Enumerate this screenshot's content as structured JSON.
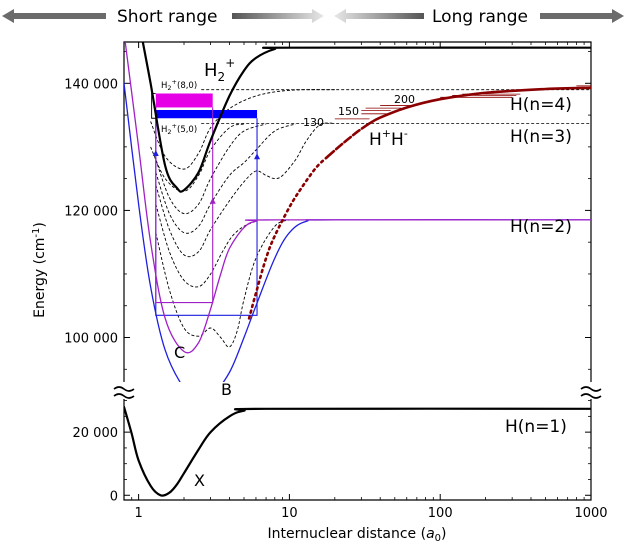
{
  "banner": {
    "short_range": "Short range",
    "long_range": "Long range"
  },
  "axes": {
    "xlabel_main": "Internuclear distance (",
    "xlabel_unit": "a",
    "xlabel_sub": "0",
    "xlabel_end": ")",
    "ylabel_main": "Energy (cm",
    "ylabel_sup": "-1",
    "ylabel_end": ")"
  },
  "labels": {
    "h2plus_base": "H",
    "h2plus_sub": "2",
    "h2plus_sup": "+",
    "n4": "H(n=4)",
    "n3": "H(n=3)",
    "n2": "H(n=2)",
    "n1": "H(n=1)",
    "hh_a": "H",
    "hh_sup1": "+",
    "hh_b": "H",
    "hh_sup2": "-",
    "C": "C",
    "B": "B",
    "X": "X",
    "v80_base": "H",
    "v80_sub": "2",
    "v80_sup": "+",
    "v80_tail": "(8,0)",
    "v50_base": "H",
    "v50_sub": "2",
    "v50_sup": "+",
    "v50_tail": "(5,0)",
    "r130": "130",
    "r150": "150",
    "r200": "200"
  },
  "colors": {
    "black": "#000000",
    "blue": "#1f1fe0",
    "purple": "#a020c8",
    "magenta": "#e600e6",
    "darkred": "#8b0000",
    "banner_gray": "#6b6b6b"
  },
  "chart_data": {
    "type": "line",
    "x_scale": "log",
    "xlim": [
      0.8,
      1000
    ],
    "upper_ylim": [
      93000,
      146500
    ],
    "lower_ylim": [
      -1500,
      30500
    ],
    "x_ticks": [
      {
        "value": 1,
        "label": "1"
      },
      {
        "value": 10,
        "label": "10"
      },
      {
        "value": 100,
        "label": "100"
      },
      {
        "value": 1000,
        "label": "1000"
      }
    ],
    "y_ticks_upper": [
      {
        "value": 100000,
        "label": "100 000"
      },
      {
        "value": 120000,
        "label": "120 000"
      },
      {
        "value": 140000,
        "label": "140 000"
      }
    ],
    "y_ticks_lower": [
      {
        "value": 0,
        "label": "0"
      },
      {
        "value": 20000,
        "label": "20 000"
      }
    ],
    "asymptotes": [
      {
        "name": "H(n=1)",
        "energy": 27400
      },
      {
        "name": "H(n=2)",
        "energy": 118500
      },
      {
        "name": "H(n=3)",
        "energy": 133700
      },
      {
        "name": "H(n=4)",
        "energy": 139000
      },
      {
        "name": "H2+",
        "energy": 145600
      }
    ],
    "series": [
      {
        "key": "X",
        "color": "#000000",
        "panel": "lower",
        "points": [
          [
            0.8,
            28000
          ],
          [
            0.9,
            19500
          ],
          [
            1.0,
            11000
          ],
          [
            1.2,
            3000
          ],
          [
            1.4,
            0
          ],
          [
            1.6,
            800
          ],
          [
            1.8,
            3500
          ],
          [
            2.0,
            7000
          ],
          [
            2.5,
            14500
          ],
          [
            3.0,
            20000
          ],
          [
            4.0,
            25000
          ],
          [
            5.0,
            26800
          ],
          [
            7.0,
            27400
          ],
          [
            1000,
            27400
          ]
        ]
      },
      {
        "key": "B",
        "color": "#1f1fe0",
        "panel": "upper",
        "points": [
          [
            0.8,
            140000
          ],
          [
            1.0,
            121000
          ],
          [
            1.2,
            108000
          ],
          [
            1.5,
            98000
          ],
          [
            2.0,
            92000
          ],
          [
            2.5,
            90000
          ],
          [
            3.0,
            90500
          ],
          [
            4.0,
            94500
          ],
          [
            5.0,
            100000
          ],
          [
            6.0,
            105000
          ],
          [
            8.0,
            112500
          ],
          [
            10.0,
            116500
          ],
          [
            13.0,
            118300
          ],
          [
            20.0,
            118500
          ],
          [
            1000,
            118500
          ]
        ]
      },
      {
        "key": "C",
        "color": "#a020c8",
        "panel": "upper",
        "points": [
          [
            0.8,
            148000
          ],
          [
            1.0,
            130000
          ],
          [
            1.2,
            115000
          ],
          [
            1.5,
            103000
          ],
          [
            2.0,
            97800
          ],
          [
            2.5,
            99200
          ],
          [
            3.0,
            104500
          ],
          [
            3.5,
            110000
          ],
          [
            4.0,
            114000
          ],
          [
            5.0,
            117300
          ],
          [
            6.0,
            118300
          ],
          [
            8.0,
            118500
          ],
          [
            1000,
            118500
          ]
        ]
      },
      {
        "key": "H2+",
        "color": "#000000",
        "panel": "upper",
        "points": [
          [
            1.0,
            150000
          ],
          [
            1.2,
            140000
          ],
          [
            1.5,
            127000
          ],
          [
            1.8,
            123500
          ],
          [
            2.0,
            123200
          ],
          [
            2.5,
            126000
          ],
          [
            3.0,
            131000
          ],
          [
            4.0,
            138000
          ],
          [
            5.0,
            142000
          ],
          [
            6.0,
            144000
          ],
          [
            8.0,
            145400
          ],
          [
            10.0,
            145600
          ],
          [
            1000,
            145600
          ]
        ]
      },
      {
        "key": "H+H- dotted",
        "color": "#8b0000",
        "panel": "upper",
        "points": [
          [
            5.4,
            103000
          ],
          [
            6.0,
            107000
          ],
          [
            7.0,
            112500
          ],
          [
            8.0,
            116000
          ],
          [
            10.0,
            120500
          ],
          [
            12.0,
            123500
          ],
          [
            15.0,
            126700
          ],
          [
            18.0,
            128500
          ]
        ]
      },
      {
        "key": "H+H- dashed",
        "color": "#8b0000",
        "panel": "upper",
        "points": [
          [
            18.0,
            128500
          ],
          [
            22.0,
            130300
          ],
          [
            28.0,
            132300
          ],
          [
            34.0,
            133700
          ]
        ]
      },
      {
        "key": "H+H- solid",
        "color": "#8b0000",
        "panel": "upper",
        "points": [
          [
            34.0,
            133700
          ],
          [
            40.0,
            134600
          ],
          [
            60.0,
            136200
          ],
          [
            100.0,
            137500
          ],
          [
            200.0,
            138500
          ],
          [
            500.0,
            139100
          ],
          [
            1000,
            139300
          ]
        ]
      }
    ],
    "dashed_curves": [
      [
        [
          1.3,
          116500
        ],
        [
          1.6,
          107500
        ],
        [
          2.0,
          101500
        ],
        [
          2.5,
          100200
        ],
        [
          3.0,
          101500
        ],
        [
          3.5,
          100000
        ],
        [
          4.0,
          98500
        ],
        [
          4.5,
          101000
        ],
        [
          5.0,
          106000
        ],
        [
          6.0,
          112500
        ],
        [
          8.0,
          117500
        ],
        [
          10.0,
          118500
        ]
      ],
      [
        [
          1.3,
          121000
        ],
        [
          1.6,
          113500
        ],
        [
          2.0,
          109000
        ],
        [
          2.5,
          108000
        ],
        [
          3.0,
          110000
        ],
        [
          3.6,
          113500
        ],
        [
          4.2,
          116000
        ],
        [
          5.0,
          117500
        ],
        [
          6.0,
          118300
        ]
      ],
      [
        [
          1.3,
          124000
        ],
        [
          1.6,
          117000
        ],
        [
          2.0,
          113000
        ],
        [
          2.5,
          113500
        ],
        [
          3.0,
          117000
        ],
        [
          4.0,
          121500
        ],
        [
          5.0,
          124500
        ],
        [
          6.0,
          126200
        ],
        [
          7.0,
          125500
        ],
        [
          8.0,
          125000
        ],
        [
          9.0,
          125500
        ],
        [
          11.0,
          128000
        ],
        [
          13.0,
          131000
        ],
        [
          16.0,
          133500
        ],
        [
          20.0,
          133700
        ]
      ],
      [
        [
          1.3,
          126000
        ],
        [
          1.6,
          119500
        ],
        [
          2.0,
          116500
        ],
        [
          2.5,
          117500
        ],
        [
          3.0,
          121000
        ],
        [
          4.0,
          125500
        ],
        [
          5.0,
          127500
        ],
        [
          6.0,
          129500
        ],
        [
          8.0,
          132500
        ],
        [
          11.0,
          133600
        ]
      ],
      [
        [
          1.3,
          128000
        ],
        [
          1.6,
          122000
        ],
        [
          2.0,
          119500
        ],
        [
          2.5,
          121000
        ],
        [
          3.0,
          125000
        ],
        [
          4.0,
          130000
        ],
        [
          5.0,
          132500
        ],
        [
          7.0,
          133600
        ]
      ],
      [
        [
          1.2,
          130000
        ],
        [
          1.5,
          125000
        ],
        [
          2.0,
          123000
        ],
        [
          2.5,
          125500
        ],
        [
          3.0,
          129500
        ],
        [
          4.0,
          133000
        ],
        [
          5.0,
          133600
        ]
      ],
      [
        [
          1.2,
          134000
        ],
        [
          1.5,
          128500
        ],
        [
          2.0,
          126500
        ],
        [
          2.5,
          129000
        ],
        [
          3.0,
          133000
        ],
        [
          4.0,
          136000
        ],
        [
          6.0,
          138000
        ],
        [
          10.0,
          138900
        ],
        [
          20.0,
          139000
        ]
      ]
    ],
    "dashed_levels": [
      133700,
      139000
    ],
    "bands": [
      {
        "name": "H2+(8,0)",
        "color": "#e600e6",
        "x": [
          1.3,
          3.1
        ],
        "y": [
          136200,
          138400
        ]
      },
      {
        "name": "H2+(5,0)",
        "color": "#0000ff",
        "x": [
          1.3,
          6.1
        ],
        "y": [
          134500,
          135800
        ]
      }
    ],
    "bracket": {
      "x": 1.22,
      "y": [
        134500,
        138400
      ]
    },
    "transitions": [
      {
        "color": "#1f1fe0",
        "xs": [
          1.3,
          6.1
        ],
        "y_low": 103500,
        "y_high": 134500
      },
      {
        "color": "#a020c8",
        "xs": [
          1.3,
          3.1
        ],
        "y_low": 105500,
        "y_high": 136200
      }
    ],
    "transition_arrows": [
      {
        "color": "#1f1fe0",
        "x": 1.3,
        "y_from": 127000,
        "y_to": 129500
      },
      {
        "color": "#1f1fe0",
        "x": 6.1,
        "y_from": 126500,
        "y_to": 129000
      },
      {
        "color": "#a020c8",
        "x": 3.1,
        "y_from": 119500,
        "y_to": 122000
      }
    ],
    "rydberg_lines": [
      {
        "y": 134400,
        "x": [
          20,
          34
        ]
      },
      {
        "y": 135200,
        "x": [
          30,
          45
        ]
      },
      {
        "y": 135700,
        "x": [
          30,
          47
        ]
      },
      {
        "y": 136100,
        "x": [
          32,
          55
        ]
      },
      {
        "y": 136500,
        "x": [
          40,
          65
        ]
      },
      {
        "y": 137800,
        "x": [
          100,
          300
        ]
      },
      {
        "y": 138100,
        "x": [
          120,
          320
        ]
      },
      {
        "y": 138300,
        "x": [
          140,
          340
        ]
      },
      {
        "y": 139600,
        "x": [
          800,
          1000
        ]
      }
    ]
  }
}
